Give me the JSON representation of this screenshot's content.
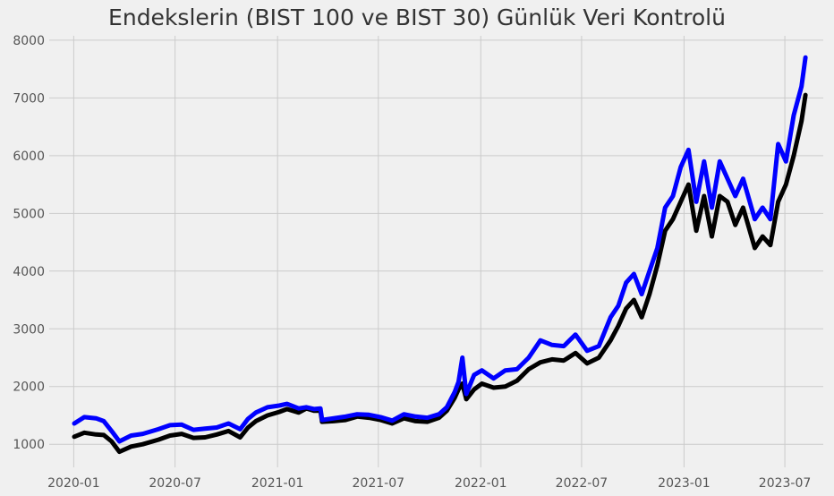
{
  "chart_data": {
    "type": "line",
    "title": "Endekslerin (BIST 100 ve BIST 30) Günlük Veri Kontrolü",
    "xlabel": "",
    "ylabel": "",
    "grid": true,
    "legend": "none",
    "x_range": [
      "2019-11-18",
      "2023-09-08"
    ],
    "ylim": [
      600,
      8200
    ],
    "x_ticks": [
      "2020-01",
      "2020-07",
      "2021-01",
      "2021-07",
      "2022-01",
      "2022-07",
      "2023-01",
      "2023-07"
    ],
    "y_ticks": [
      1000,
      2000,
      3000,
      4000,
      5000,
      6000,
      7000,
      8000
    ],
    "x": [
      "2020-01-02",
      "2020-01-20",
      "2020-02-10",
      "2020-02-24",
      "2020-03-09",
      "2020-03-23",
      "2020-04-13",
      "2020-05-04",
      "2020-06-01",
      "2020-06-22",
      "2020-07-13",
      "2020-08-03",
      "2020-08-24",
      "2020-09-14",
      "2020-10-05",
      "2020-10-26",
      "2020-11-09",
      "2020-11-23",
      "2020-12-14",
      "2021-01-04",
      "2021-01-18",
      "2021-02-08",
      "2021-02-22",
      "2021-03-08",
      "2021-03-19",
      "2021-03-22",
      "2021-04-12",
      "2021-05-03",
      "2021-05-24",
      "2021-06-14",
      "2021-07-05",
      "2021-07-26",
      "2021-08-16",
      "2021-09-06",
      "2021-09-27",
      "2021-10-18",
      "2021-11-01",
      "2021-11-15",
      "2021-11-22",
      "2021-11-29",
      "2021-12-06",
      "2021-12-20",
      "2022-01-03",
      "2022-01-24",
      "2022-02-14",
      "2022-03-07",
      "2022-03-28",
      "2022-04-18",
      "2022-05-09",
      "2022-05-30",
      "2022-06-20",
      "2022-07-11",
      "2022-08-01",
      "2022-08-22",
      "2022-09-05",
      "2022-09-19",
      "2022-10-03",
      "2022-10-17",
      "2022-10-31",
      "2022-11-14",
      "2022-11-28",
      "2022-12-12",
      "2022-12-26",
      "2023-01-09",
      "2023-01-23",
      "2023-02-06",
      "2023-02-20",
      "2023-03-06",
      "2023-03-20",
      "2023-04-03",
      "2023-04-17",
      "2023-05-08",
      "2023-05-22",
      "2023-06-05",
      "2023-06-19",
      "2023-07-03",
      "2023-07-17",
      "2023-07-31",
      "2023-08-07"
    ],
    "series": [
      {
        "color": "#000000",
        "values": [
          1130,
          1200,
          1170,
          1160,
          1050,
          870,
          960,
          1000,
          1080,
          1150,
          1180,
          1110,
          1120,
          1170,
          1230,
          1120,
          1290,
          1400,
          1500,
          1560,
          1610,
          1550,
          1620,
          1580,
          1580,
          1390,
          1400,
          1420,
          1480,
          1460,
          1420,
          1360,
          1450,
          1400,
          1390,
          1460,
          1580,
          1800,
          1950,
          2050,
          1780,
          1950,
          2050,
          1980,
          2000,
          2100,
          2300,
          2420,
          2470,
          2450,
          2580,
          2400,
          2500,
          2800,
          3050,
          3350,
          3500,
          3200,
          3600,
          4100,
          4700,
          4900,
          5200,
          5500,
          4700,
          5300,
          4600,
          5300,
          5200,
          4800,
          5100,
          4400,
          4600,
          4450,
          5200,
          5500,
          6000,
          6600,
          7050
        ]
      },
      {
        "color": "#0000ff",
        "values": [
          1360,
          1470,
          1450,
          1400,
          1230,
          1050,
          1150,
          1180,
          1260,
          1330,
          1340,
          1250,
          1270,
          1290,
          1360,
          1260,
          1440,
          1550,
          1640,
          1670,
          1700,
          1620,
          1640,
          1610,
          1620,
          1420,
          1450,
          1480,
          1520,
          1510,
          1470,
          1410,
          1520,
          1480,
          1460,
          1520,
          1640,
          1900,
          2080,
          2500,
          1870,
          2200,
          2280,
          2140,
          2280,
          2300,
          2500,
          2800,
          2720,
          2700,
          2900,
          2620,
          2700,
          3200,
          3400,
          3800,
          3950,
          3600,
          4000,
          4400,
          5100,
          5300,
          5800,
          6100,
          5200,
          5900,
          5100,
          5900,
          5600,
          5300,
          5600,
          4900,
          5100,
          4900,
          6200,
          5900,
          6700,
          7200,
          7700
        ]
      }
    ]
  }
}
